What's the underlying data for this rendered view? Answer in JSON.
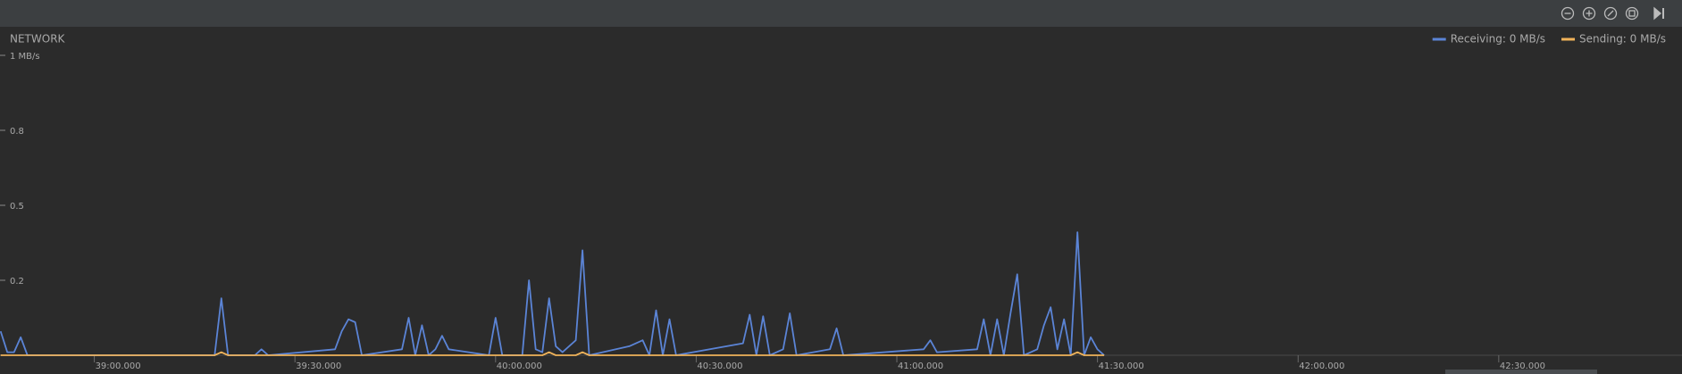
{
  "chart_data": {
    "type": "line",
    "title": "NETWORK",
    "xlim": [
      2325.9,
      2577.4
    ],
    "xticks": [
      {
        "value": 2340,
        "label": "39:00.000"
      },
      {
        "value": 2370,
        "label": "39:30.000"
      },
      {
        "value": 2400,
        "label": "40:00.000"
      },
      {
        "value": 2430,
        "label": "40:30.000"
      },
      {
        "value": 2460,
        "label": "41:00.000"
      },
      {
        "value": 2490,
        "label": "41:30.000"
      },
      {
        "value": 2520,
        "label": "42:00.000"
      },
      {
        "value": 2550,
        "label": "42:30.000"
      }
    ],
    "ylim": [
      0,
      1
    ],
    "yticks": [
      {
        "value": 0.25,
        "label": "0.2"
      },
      0.5,
      {
        "value": 0.75,
        "label": "0.8"
      },
      {
        "value": 1,
        "label": "1 MB/s"
      }
    ],
    "legend": "top-right",
    "series": [
      {
        "name": "Receiving: 0 MB/s",
        "color": "#5b84d6",
        "x": [
          2326,
          2327,
          2328,
          2329,
          2330,
          2358,
          2359,
          2360,
          2364,
          2365,
          2366,
          2376,
          2377,
          2378,
          2379,
          2380,
          2386,
          2387,
          2388,
          2389,
          2390,
          2391,
          2392,
          2393,
          2399,
          2400,
          2401,
          2404,
          2405,
          2406,
          2407,
          2408,
          2409,
          2410,
          2412,
          2413,
          2414,
          2420,
          2421,
          2422,
          2423,
          2424,
          2425,
          2426,
          2427,
          2437,
          2438,
          2439,
          2440,
          2441,
          2443,
          2444,
          2445,
          2450,
          2451,
          2452,
          2464,
          2465,
          2466,
          2472,
          2473,
          2474,
          2475,
          2476,
          2477,
          2478,
          2479,
          2481,
          2482,
          2483,
          2484,
          2485,
          2486,
          2487,
          2488,
          2489,
          2490,
          2491
        ],
        "values": [
          0.08,
          0.01,
          0.01,
          0.06,
          0,
          0,
          0.19,
          0,
          0,
          0.02,
          0,
          0.02,
          0.08,
          0.12,
          0.11,
          0,
          0.02,
          0.125,
          0,
          0.1,
          0,
          0.02,
          0.065,
          0.02,
          0,
          0.125,
          0,
          0,
          0.25,
          0.02,
          0.01,
          0.19,
          0.03,
          0.01,
          0.05,
          0.35,
          0,
          0.03,
          0.04,
          0.05,
          0,
          0.15,
          0,
          0.12,
          0,
          0.04,
          0.135,
          0,
          0.13,
          0,
          0.02,
          0.14,
          0,
          0.02,
          0.09,
          0,
          0.02,
          0.05,
          0.01,
          0.02,
          0.12,
          0,
          0.12,
          0,
          0.14,
          0.27,
          0,
          0.02,
          0.1,
          0.16,
          0.02,
          0.12,
          0,
          0.41,
          0,
          0.06,
          0.02,
          0
        ]
      },
      {
        "name": "Sending: 0 MB/s",
        "color": "#f0b35a",
        "x": [
          2326,
          2358,
          2359,
          2360,
          2407,
          2408,
          2409,
          2412,
          2413,
          2414,
          2486,
          2487,
          2488,
          2491
        ],
        "values": [
          0,
          0,
          0.01,
          0,
          0,
          0.01,
          0,
          0,
          0.01,
          0,
          0,
          0.01,
          0,
          0
        ]
      }
    ]
  }
}
